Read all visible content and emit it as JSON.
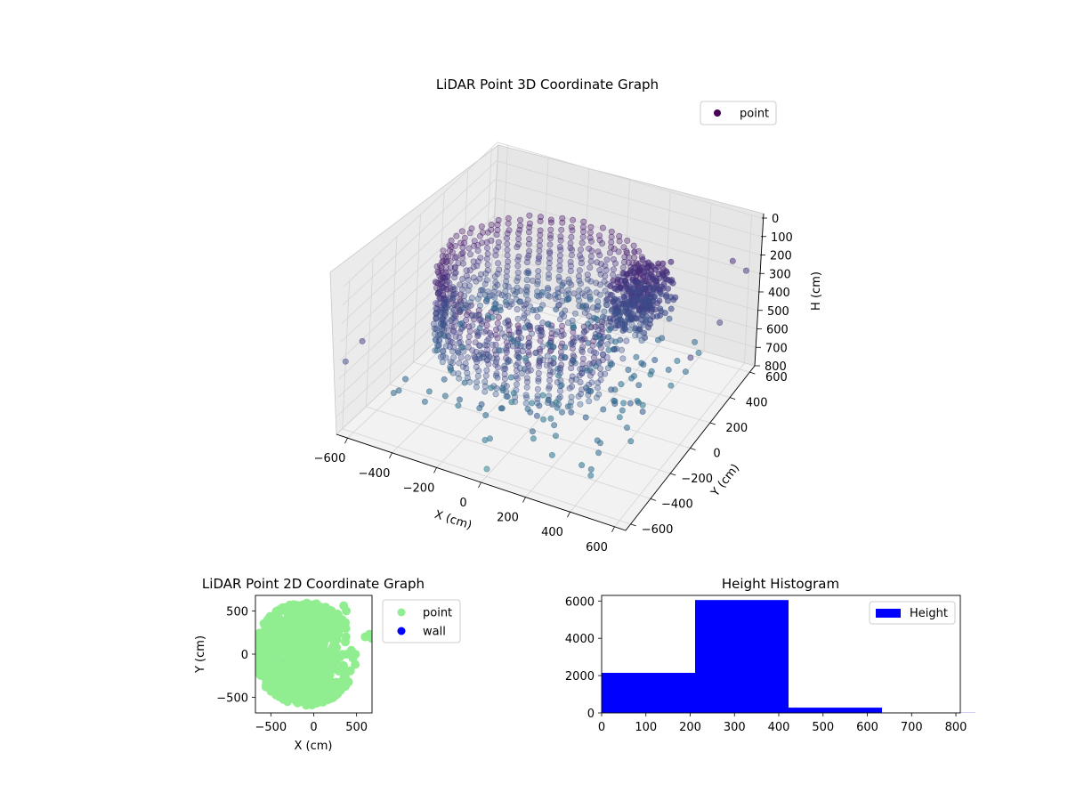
{
  "chart_data": [
    {
      "type": "scatter3d",
      "title": "LiDAR Point 3D Coordinate Graph",
      "xlabel": "X (cm)",
      "ylabel": "Y (cm)",
      "zlabel": "H (cm)",
      "x_ticks": [
        -600,
        -400,
        -200,
        0,
        200,
        400,
        600
      ],
      "y_ticks": [
        -600,
        -400,
        -200,
        0,
        200,
        400,
        600
      ],
      "z_ticks": [
        0,
        100,
        200,
        300,
        400,
        500,
        600,
        700,
        800
      ],
      "xlim": [
        -650,
        650
      ],
      "ylim": [
        -650,
        650
      ],
      "zlim": [
        0,
        800
      ],
      "z_inverted": true,
      "colormap": "viridis (by height)",
      "grid": true,
      "legend": {
        "position": "top-right",
        "entries": [
          {
            "label": "point",
            "color": "#440154"
          }
        ]
      },
      "series": [
        {
          "name": "point",
          "shape": "partial-cylinder ring of points centered near (0,0), radius about 550 cm, heights 0–800 cm, plus a dense cluster near X≈250, Y≈300 and scattered outliers",
          "point_count_approx": 8700
        }
      ]
    },
    {
      "type": "scatter",
      "title": "LiDAR Point 2D Coordinate Graph",
      "xlabel": "X (cm)",
      "ylabel": "Y (cm)",
      "x_ticks": [
        -500,
        0,
        500
      ],
      "y_ticks": [
        -500,
        0,
        500
      ],
      "xlim": [
        -680,
        680
      ],
      "ylim": [
        -680,
        680
      ],
      "legend": {
        "position": "outside-right",
        "entries": [
          {
            "label": "point",
            "color": "#90ee90"
          },
          {
            "label": "wall",
            "color": "#0000ff"
          }
        ]
      },
      "series": [
        {
          "name": "point",
          "color": "#90ee90",
          "shape": "filled disc of points, radius about 600 cm, with a notch to the right between X 300–500"
        },
        {
          "name": "wall",
          "color": "#0000ff",
          "points": []
        }
      ]
    },
    {
      "type": "histogram",
      "title": "Height Histogram",
      "xlabel": "",
      "ylabel": "",
      "xlim": [
        0,
        810
      ],
      "ylim": [
        0,
        6300
      ],
      "x_ticks": [
        0,
        100,
        200,
        300,
        400,
        500,
        600,
        700,
        800
      ],
      "y_ticks": [
        0,
        2000,
        4000,
        6000
      ],
      "bin_edges": [
        0,
        211,
        422,
        633,
        844
      ],
      "values": [
        2150,
        6050,
        280,
        10
      ],
      "color": "#0000ff",
      "legend": {
        "position": "top-right",
        "entries": [
          {
            "label": "Height",
            "color": "#0000ff"
          }
        ]
      }
    }
  ]
}
